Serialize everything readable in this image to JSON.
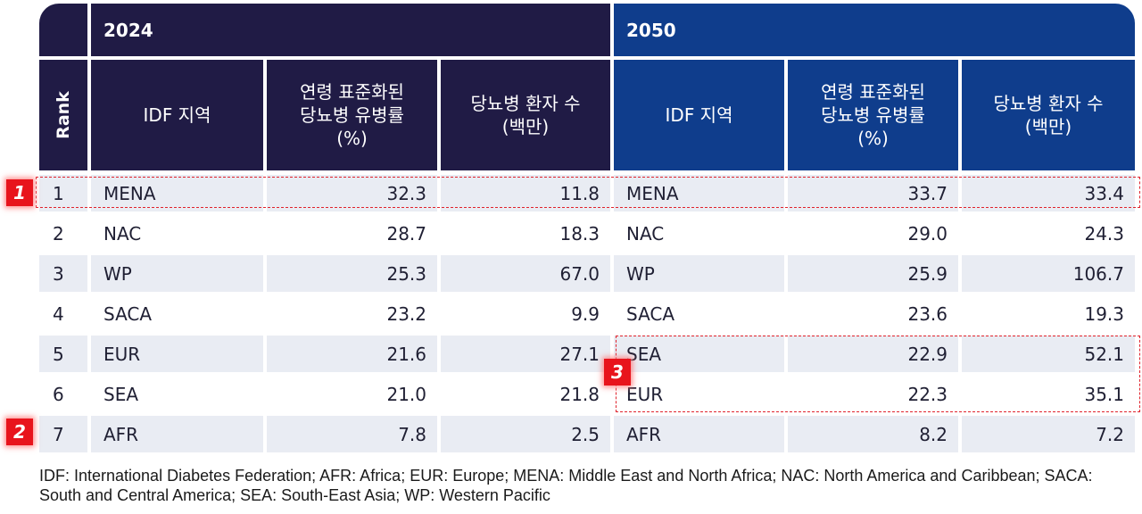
{
  "header": {
    "year_2024": "2024",
    "year_2050": "2050",
    "rank": "Rank",
    "region": "IDF 지역",
    "prevalence": "연령 표준화된\n당뇨병 유병률\n(%)",
    "patients": "당뇨병 환자 수\n(백만)"
  },
  "rows": [
    {
      "rank": "1",
      "region_2024": "MENA",
      "prev_2024": "32.3",
      "pat_2024": "11.8",
      "region_2050": "MENA",
      "prev_2050": "33.7",
      "pat_2050": "33.4"
    },
    {
      "rank": "2",
      "region_2024": "NAC",
      "prev_2024": "28.7",
      "pat_2024": "18.3",
      "region_2050": "NAC",
      "prev_2050": "29.0",
      "pat_2050": "24.3"
    },
    {
      "rank": "3",
      "region_2024": "WP",
      "prev_2024": "25.3",
      "pat_2024": "67.0",
      "region_2050": "WP",
      "prev_2050": "25.9",
      "pat_2050": "106.7"
    },
    {
      "rank": "4",
      "region_2024": "SACA",
      "prev_2024": "23.2",
      "pat_2024": "9.9",
      "region_2050": "SACA",
      "prev_2050": "23.6",
      "pat_2050": "19.3"
    },
    {
      "rank": "5",
      "region_2024": "EUR",
      "prev_2024": "21.6",
      "pat_2024": "27.1",
      "region_2050": "SEA",
      "prev_2050": "22.9",
      "pat_2050": "52.1"
    },
    {
      "rank": "6",
      "region_2024": "SEA",
      "prev_2024": "21.0",
      "pat_2024": "21.8",
      "region_2050": "EUR",
      "prev_2050": "22.3",
      "pat_2050": "35.1"
    },
    {
      "rank": "7",
      "region_2024": "AFR",
      "prev_2024": "7.8",
      "pat_2024": "2.5",
      "region_2050": "AFR",
      "prev_2050": "8.2",
      "pat_2050": "7.2"
    }
  ],
  "annotations": [
    "1",
    "2",
    "3"
  ],
  "footnote": "IDF: International Diabetes Federation; AFR: Africa; EUR: Europe; MENA: Middle East and North Africa; NAC: North America and Caribbean; SACA: South and Central America; SEA: South-East Asia; WP: Western Pacific",
  "colors": {
    "header_dark": "#201b45",
    "header_blue": "#0f3d8c",
    "stripe": "#e9ecf3",
    "annotation_red": "#e8141c"
  }
}
